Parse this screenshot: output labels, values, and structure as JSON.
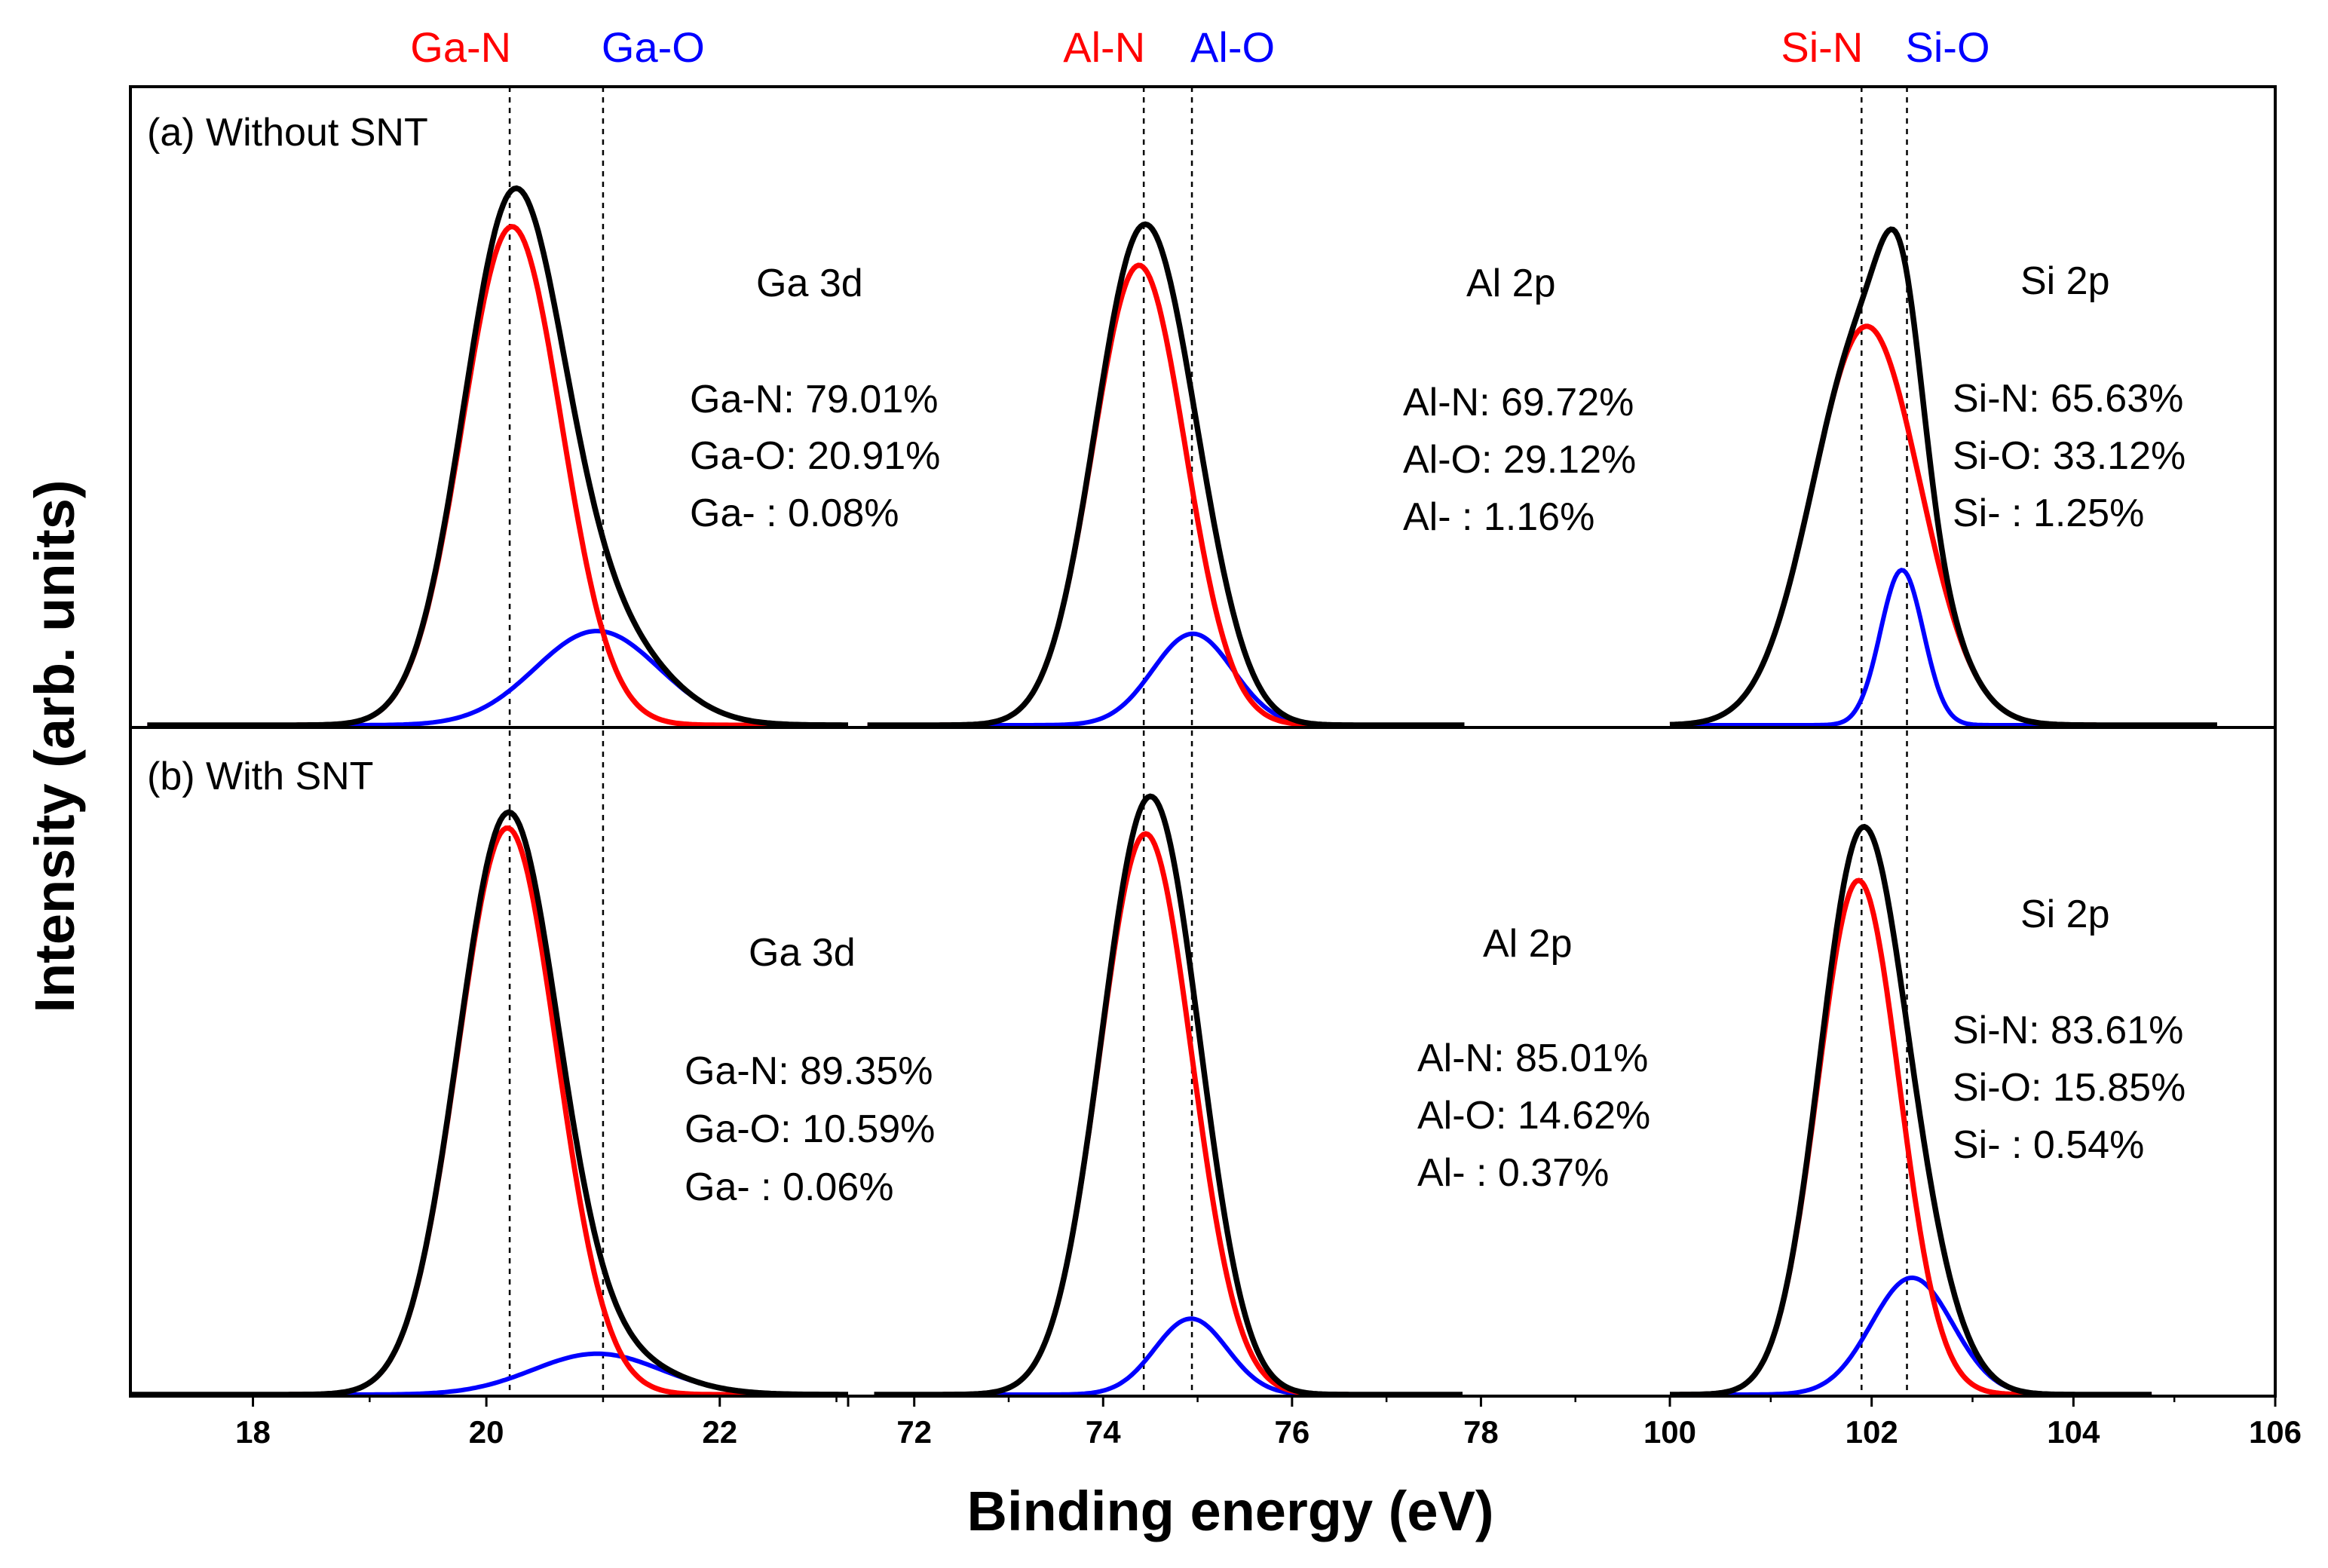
{
  "chart_data": {
    "type": "line",
    "xlabel": "Binding energy (eV)",
    "ylabel": "Intensity (arb. units)",
    "series_colors": {
      "envelope": "#000000",
      "nitride": "#ff0000",
      "oxide": "#0000ff"
    },
    "top_labels": [
      {
        "red": "Ga-N",
        "blue": "Ga-O"
      },
      {
        "red": "Al-N",
        "blue": "Al-O"
      },
      {
        "red": "Si-N",
        "blue": "Si-O"
      }
    ],
    "x_segments": [
      {
        "element": "Ga 3d",
        "xlim": [
          16.95,
          23.1
        ],
        "ticks": [
          18,
          20,
          22
        ],
        "tick_labels": [
          "18",
          "20",
          "22"
        ],
        "ref_lines": [
          20.2,
          21.0
        ],
        "red_label_at": 20.2,
        "blue_label_at": 21.0
      },
      {
        "element": "Al 2p",
        "xlim": [
          71.3,
          80.0
        ],
        "ticks": [
          72,
          74,
          76,
          78
        ],
        "tick_labels": [
          "72",
          "74",
          "76",
          "78"
        ],
        "ref_lines": [
          74.43,
          74.94
        ],
        "red_label_at": 74.43,
        "blue_label_at": 74.94
      },
      {
        "element": "Si 2p",
        "xlim": [
          100.0,
          106.0
        ],
        "ticks": [
          100,
          102,
          104,
          106
        ],
        "tick_labels": [
          "100",
          "102",
          "104",
          "106"
        ],
        "ref_lines": [
          101.9,
          102.35
        ],
        "red_label_at": 101.9,
        "blue_label_at": 102.35
      }
    ],
    "panels": [
      {
        "label": "(a) Without SNT",
        "segments": [
          {
            "title": "Ga 3d",
            "stats": [
              "Ga-N: 79.01%",
              "Ga-O: 20.91%",
              "Ga- : 0.08%"
            ],
            "nitride": {
              "center": 20.22,
              "height": 0.9,
              "fwhm": 1.0
            },
            "oxide": {
              "center": 20.95,
              "height": 0.17,
              "fwhm": 1.25
            }
          },
          {
            "title": "Al 2p",
            "stats": [
              "Al-N: 69.72%",
              "Al-O: 29.12%",
              "Al- : 1.16%"
            ],
            "nitride": {
              "center": 74.38,
              "height": 0.83,
              "fwhm": 1.15
            },
            "oxide": {
              "center": 74.95,
              "height": 0.165,
              "fwhm": 1.0
            }
          },
          {
            "title": "Si 2p",
            "stats": [
              "Si-N: 65.63%",
              "Si-O: 33.12%",
              "Si- : 1.25%"
            ],
            "nitride": {
              "center": 101.95,
              "height": 0.72,
              "fwhm": 1.25
            },
            "oxide": {
              "center": 102.3,
              "height": 0.28,
              "fwhm": 0.5
            }
          }
        ]
      },
      {
        "label": "(b) With SNT",
        "segments": [
          {
            "title": "Ga 3d",
            "stats": [
              "Ga-N: 89.35%",
              "Ga-O: 10.59%",
              "Ga- : 0.06%"
            ],
            "nitride": {
              "center": 20.18,
              "height": 0.97,
              "fwhm": 1.0
            },
            "oxide": {
              "center": 20.95,
              "height": 0.07,
              "fwhm": 1.3
            }
          },
          {
            "title": "Al 2p",
            "stats": [
              "Al-N: 85.01%",
              "Al-O: 14.62%",
              "Al- : 0.37%"
            ],
            "nitride": {
              "center": 74.45,
              "height": 0.96,
              "fwhm": 1.15
            },
            "oxide": {
              "center": 74.93,
              "height": 0.13,
              "fwhm": 0.9
            }
          },
          {
            "title": "Si 2p",
            "stats": [
              "Si-N: 83.61%",
              "Si-O: 15.85%",
              "Si- : 0.54%"
            ],
            "nitride": {
              "center": 101.87,
              "height": 0.88,
              "fwhm": 0.95
            },
            "oxide": {
              "center": 102.4,
              "height": 0.2,
              "fwhm": 0.95
            }
          }
        ]
      }
    ]
  }
}
